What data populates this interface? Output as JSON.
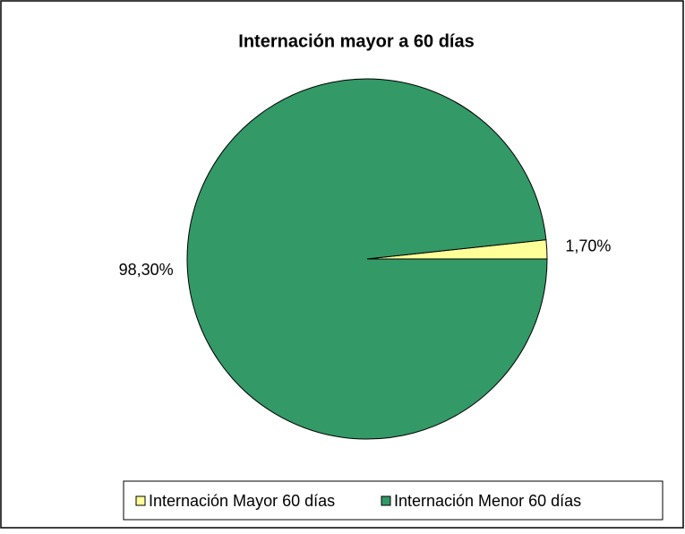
{
  "chart_data": {
    "type": "pie",
    "title": "Internación mayor a 60 días",
    "categories": [
      "Internación Mayor 60 días",
      "Internación Menor 60 días"
    ],
    "values": [
      1.7,
      98.3
    ],
    "value_labels": [
      "1,70%",
      "98,30%"
    ],
    "colors": [
      "#ffff99",
      "#339966"
    ],
    "legend": "bottom"
  }
}
